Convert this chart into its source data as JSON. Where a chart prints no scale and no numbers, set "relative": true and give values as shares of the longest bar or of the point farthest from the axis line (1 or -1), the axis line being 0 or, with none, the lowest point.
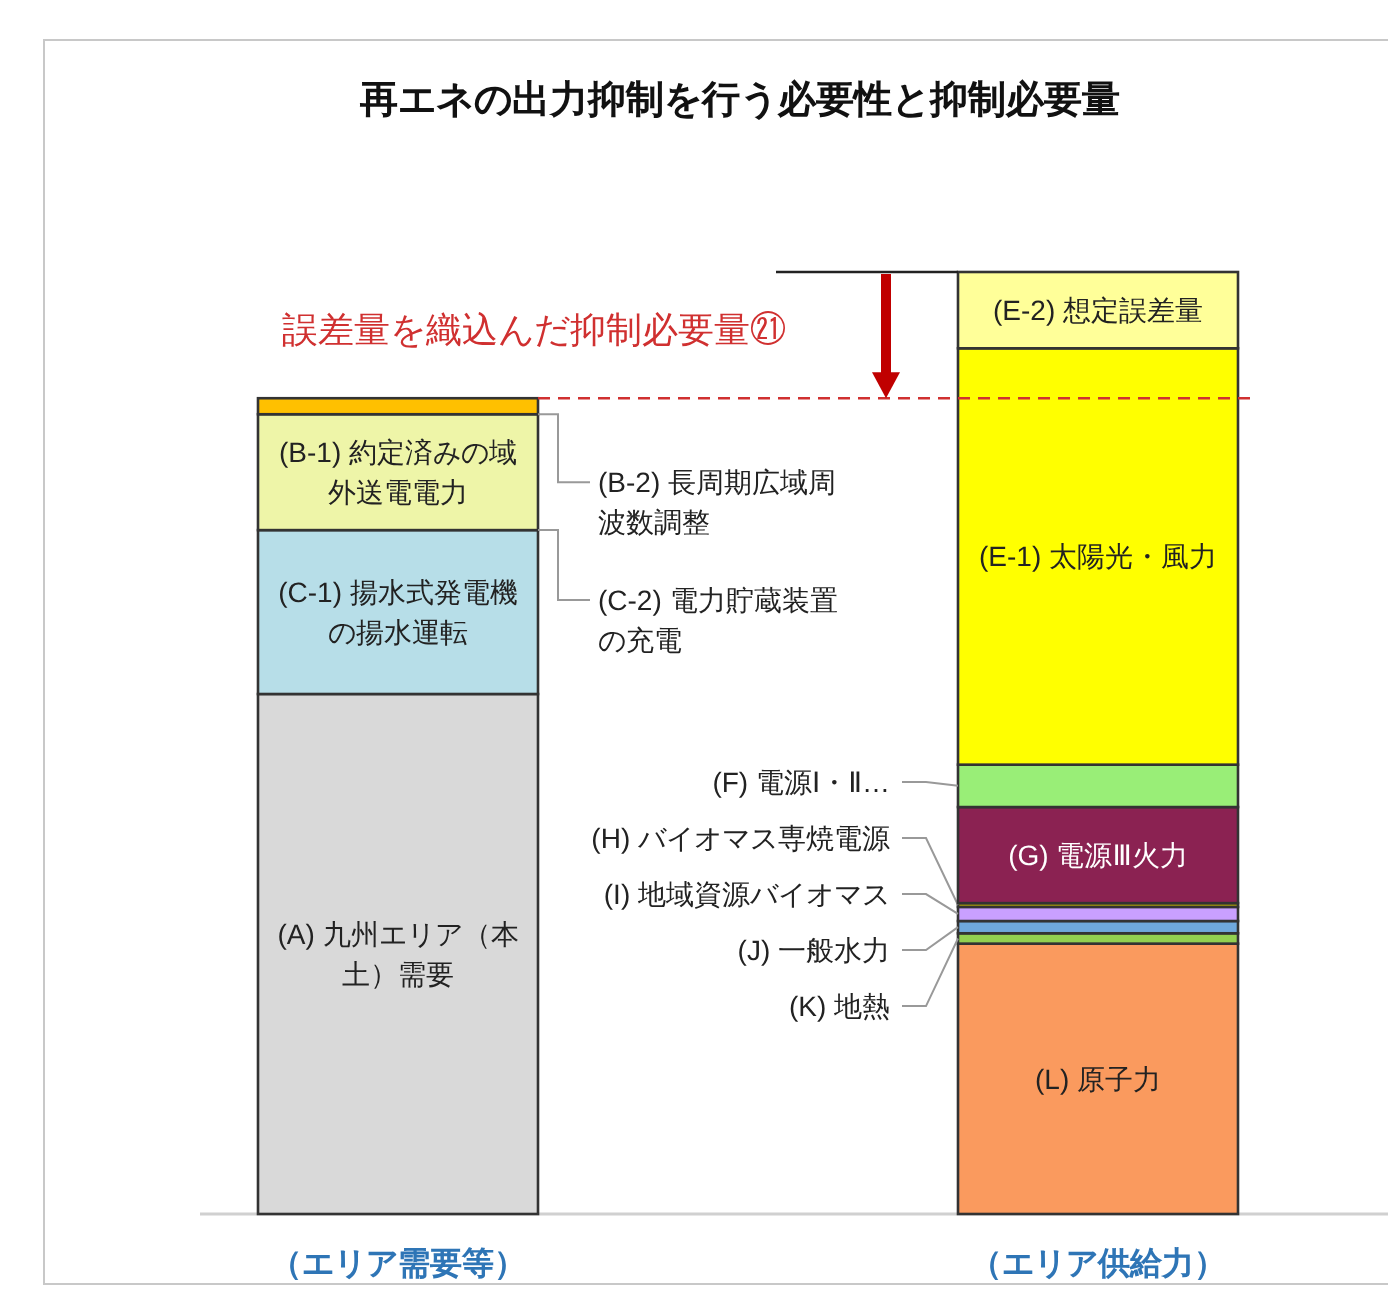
{
  "chart_data": {
    "type": "bar",
    "stacked": true,
    "relative": true,
    "title": "再エネの出力抑制を行う必要性と抑制必要量",
    "categories": [
      "（エリア需要等）",
      "（エリア供給力）"
    ],
    "series": [
      {
        "name": "(A) 九州エリア（本土）需要",
        "color": "#d9d9d9",
        "values": [
          0.552,
          null
        ]
      },
      {
        "name": "(C-1) 揚水式発電機の揚水運転",
        "color": "#b7dee8",
        "values": [
          0.174,
          null
        ]
      },
      {
        "name": "(B-1) 約定済みの域外送電電力",
        "color": "#eef5a8",
        "values": [
          0.123,
          null
        ]
      },
      {
        "name": "(B-2) 長周期広域周波数調整",
        "color": "#ffc000",
        "values": [
          0.017,
          null
        ]
      },
      {
        "name": "(L) 原子力",
        "color": "#fa9a5e",
        "values": [
          null,
          0.287
        ]
      },
      {
        "name": "(K) 地熱",
        "color": "#92d050",
        "values": [
          null,
          0.011
        ]
      },
      {
        "name": "(J) 一般水力",
        "color": "#6fa8dc",
        "values": [
          null,
          0.013
        ]
      },
      {
        "name": "(I) 地域資源バイオマス",
        "color": "#c9a0ff",
        "values": [
          null,
          0.015
        ]
      },
      {
        "name": "(H) バイオマス専焼電源",
        "color": "#c8b400",
        "values": [
          null,
          0.004
        ]
      },
      {
        "name": "(G) 電源Ⅲ火力",
        "color": "#8b2252",
        "values": [
          null,
          0.102
        ]
      },
      {
        "name": "(F) 電源Ⅰ・Ⅱ…",
        "color": "#99ee77",
        "values": [
          null,
          0.045
        ]
      },
      {
        "name": "(E-1) 太陽光・風力",
        "color": "#ffff00",
        "values": [
          null,
          0.442
        ]
      },
      {
        "name": "(E-2) 想定誤差量",
        "color": "#ffff99",
        "values": [
          null,
          0.081
        ]
      }
    ],
    "ref_lines": [
      {
        "axis": "y",
        "value": 0.866,
        "label": "誤差量を織込んだ抑制必要量㉑",
        "color": "#d03030",
        "line_style": "dashed"
      }
    ],
    "annotations": [
      "(C-2) 電力貯蔵装置の充電"
    ]
  }
}
